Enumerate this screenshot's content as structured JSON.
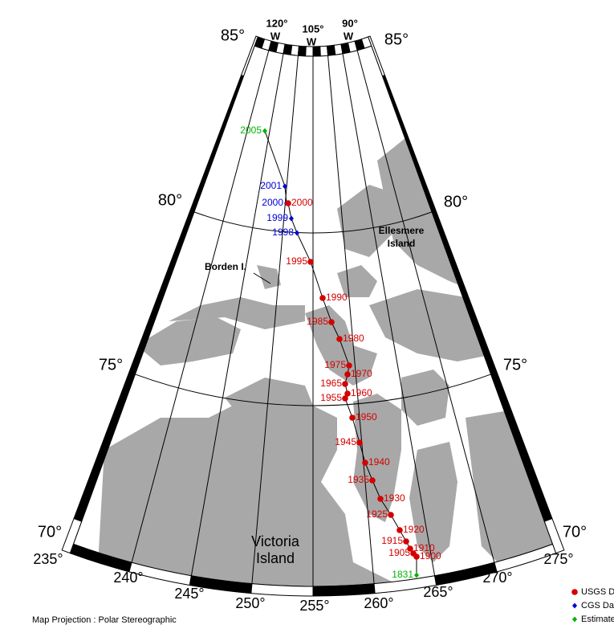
{
  "lat_labels": [
    "85°",
    "80°",
    "75°",
    "70°"
  ],
  "lon_labels": [
    "235°",
    "240°",
    "245°",
    "250°",
    "255°",
    "260°",
    "265°",
    "270°",
    "275°"
  ],
  "top_labels": [
    {
      "deg": "120°",
      "dir": "W"
    },
    {
      "deg": "105°",
      "dir": "W"
    },
    {
      "deg": "90°",
      "dir": "W"
    }
  ],
  "places": {
    "ellesmere": [
      "Ellesmere",
      "Island"
    ],
    "borden": "Borden I.",
    "victoria": [
      "Victoria",
      "Island"
    ]
  },
  "legend": [
    {
      "label": "USGS Data",
      "color": "#d40000",
      "shape": "circle"
    },
    {
      "label": "CGS Data",
      "color": "#0000d4",
      "shape": "diamond"
    },
    {
      "label": "Estimated",
      "color": "#00b400",
      "shape": "diamond"
    }
  ],
  "points": [
    {
      "label": "2005",
      "series": 2
    },
    {
      "label": "2001",
      "series": 1
    },
    {
      "label": "2000",
      "series": 1
    },
    {
      "label": "2000",
      "series": 0
    },
    {
      "label": "1999",
      "series": 1
    },
    {
      "label": "1998",
      "series": 1
    },
    {
      "label": "1995",
      "series": 0
    },
    {
      "label": "1990",
      "series": 0
    },
    {
      "label": "1985",
      "series": 0
    },
    {
      "label": "1980",
      "series": 0
    },
    {
      "label": "1975",
      "series": 0
    },
    {
      "label": "1970",
      "series": 0
    },
    {
      "label": "1965",
      "series": 0
    },
    {
      "label": "1960",
      "series": 0
    },
    {
      "label": "1955",
      "series": 0
    },
    {
      "label": "1950",
      "series": 0
    },
    {
      "label": "1945",
      "series": 0
    },
    {
      "label": "1940",
      "series": 0
    },
    {
      "label": "1935",
      "series": 0
    },
    {
      "label": "1930",
      "series": 0
    },
    {
      "label": "1925",
      "series": 0
    },
    {
      "label": "1920",
      "series": 0
    },
    {
      "label": "1915",
      "series": 0
    },
    {
      "label": "1910",
      "series": 0
    },
    {
      "label": "1905",
      "series": 0
    },
    {
      "label": "1900",
      "series": 0
    },
    {
      "label": "1831",
      "series": 2
    }
  ],
  "footer": "Map Projection : Polar Stereographic"
}
